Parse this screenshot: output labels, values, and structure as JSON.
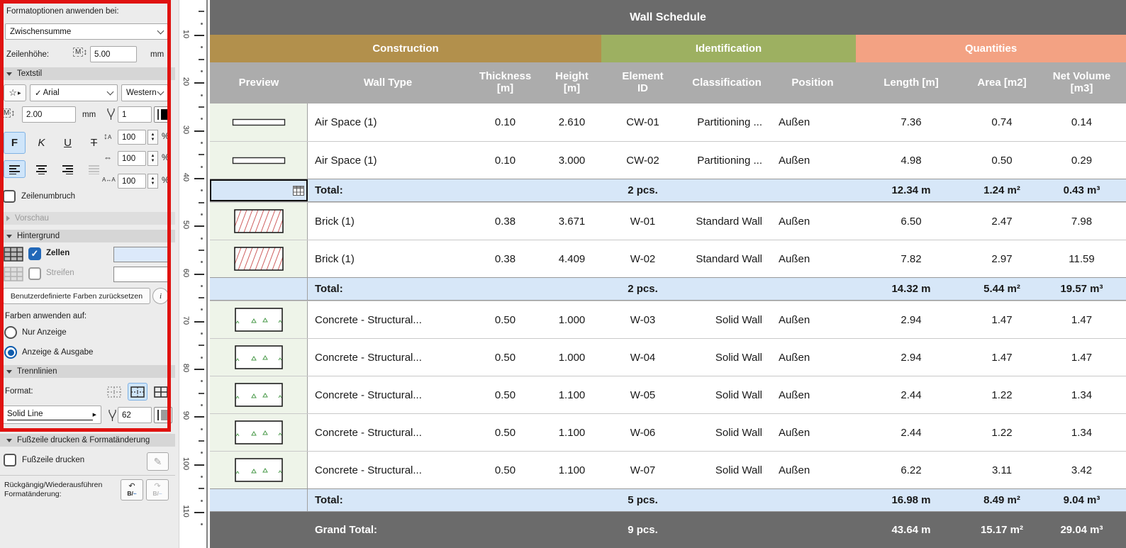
{
  "colors": {
    "selection_frame": "#e01210",
    "title_bar": "#6b6b6b",
    "construction": "#b2904c",
    "identification": "#9db061",
    "quantities": "#f3a283",
    "column_header": "#acacac",
    "total_row": "#d7e7f8",
    "preview_cell": "#eef4e9",
    "cells_color": "#dce9fa",
    "stripes_color": "#ffffff",
    "pen_color": "#000000",
    "separator_pen_color": "#9b9b9b"
  },
  "panel": {
    "apply_format_label": "Formatoptionen anwenden bei:",
    "apply_format_value": "Zwischensumme",
    "row_height": {
      "label": "Zeilenhöhe:",
      "value": "5.00",
      "unit": "mm"
    },
    "text_style": {
      "section": "Textstil",
      "font_check": "✓",
      "font_name": "Arial",
      "script": "Western",
      "size_value": "2.00",
      "size_unit": "mm",
      "pen_value": "1",
      "bold": "F",
      "italic": "K",
      "underline": "U",
      "strike": "T",
      "line_spacing": "100",
      "width_factor": "100",
      "letter_spacing": "100",
      "percent": "%"
    },
    "wrap_label": "Zeilenumbruch",
    "preview_section": "Vorschau",
    "background_section": "Hintergrund",
    "cells_label": "Zellen",
    "stripes_label": "Streifen",
    "reset_button": "Benutzerdefinierte Farben zurücksetzen",
    "apply_colors_label": "Farben anwenden auf:",
    "radio_display_only": "Nur Anzeige",
    "radio_display_output": "Anzeige & Ausgabe",
    "separators_section": "Trennlinien",
    "format_label": "Format:",
    "line_type": "Solid Line",
    "separator_pen_value": "62",
    "footer_section": "Fußzeile drucken & Formatänderung",
    "footer_print_label": "Fußzeile drucken",
    "undo_label_line1": "Rückgängig/Wiederausführen",
    "undo_label_line2": "Formatänderung:"
  },
  "ruler": {
    "labels": [
      10,
      20,
      30,
      40,
      50,
      60,
      70,
      80,
      90,
      100,
      110
    ]
  },
  "schedule": {
    "title": "Wall Schedule",
    "groups": [
      {
        "label": "Construction"
      },
      {
        "label": "Identification"
      },
      {
        "label": "Quantities"
      }
    ],
    "columns": [
      "Preview",
      "Wall Type",
      "Thickness [m]",
      "Height [m]",
      "Element ID",
      "Classification",
      "Position",
      "Length [m]",
      "Area [m2]",
      "Net Volume [m3]"
    ],
    "rows": [
      {
        "type": "data",
        "preview": "airspace",
        "wall_type": "Air Space (1)",
        "thickness": "0.10",
        "height": "2.610",
        "element_id": "CW-01",
        "classification": "Partitioning ...",
        "position": "Außen",
        "length": "7.36",
        "area": "0.74",
        "volume": "0.14"
      },
      {
        "type": "data",
        "preview": "airspace",
        "wall_type": "Air Space (1)",
        "thickness": "0.10",
        "height": "3.000",
        "element_id": "CW-02",
        "classification": "Partitioning ...",
        "position": "Außen",
        "length": "4.98",
        "area": "0.50",
        "volume": "0.29"
      },
      {
        "type": "total",
        "selected": true,
        "label": "Total:",
        "pcs": "2 pcs.",
        "length": "12.34 m",
        "area": "1.24 m²",
        "volume": "0.43 m³"
      },
      {
        "type": "data",
        "preview": "brick",
        "wall_type": "Brick (1)",
        "thickness": "0.38",
        "height": "3.671",
        "element_id": "W-01",
        "classification": "Standard Wall",
        "position": "Außen",
        "length": "6.50",
        "area": "2.47",
        "volume": "7.98"
      },
      {
        "type": "data",
        "preview": "brick",
        "wall_type": "Brick (1)",
        "thickness": "0.38",
        "height": "4.409",
        "element_id": "W-02",
        "classification": "Standard Wall",
        "position": "Außen",
        "length": "7.82",
        "area": "2.97",
        "volume": "11.59"
      },
      {
        "type": "total",
        "label": "Total:",
        "pcs": "2 pcs.",
        "length": "14.32 m",
        "area": "5.44 m²",
        "volume": "19.57 m³"
      },
      {
        "type": "data",
        "preview": "concrete",
        "wall_type": "Concrete - Structural...",
        "thickness": "0.50",
        "height": "1.000",
        "element_id": "W-03",
        "classification": "Solid Wall",
        "position": "Außen",
        "length": "2.94",
        "area": "1.47",
        "volume": "1.47"
      },
      {
        "type": "data",
        "preview": "concrete",
        "wall_type": "Concrete - Structural...",
        "thickness": "0.50",
        "height": "1.000",
        "element_id": "W-04",
        "classification": "Solid Wall",
        "position": "Außen",
        "length": "2.94",
        "area": "1.47",
        "volume": "1.47"
      },
      {
        "type": "data",
        "preview": "concrete",
        "wall_type": "Concrete - Structural...",
        "thickness": "0.50",
        "height": "1.100",
        "element_id": "W-05",
        "classification": "Solid Wall",
        "position": "Außen",
        "length": "2.44",
        "area": "1.22",
        "volume": "1.34"
      },
      {
        "type": "data",
        "preview": "concrete",
        "wall_type": "Concrete - Structural...",
        "thickness": "0.50",
        "height": "1.100",
        "element_id": "W-06",
        "classification": "Solid Wall",
        "position": "Außen",
        "length": "2.44",
        "area": "1.22",
        "volume": "1.34"
      },
      {
        "type": "data",
        "preview": "concrete",
        "wall_type": "Concrete - Structural...",
        "thickness": "0.50",
        "height": "1.100",
        "element_id": "W-07",
        "classification": "Solid Wall",
        "position": "Außen",
        "length": "6.22",
        "area": "3.11",
        "volume": "3.42"
      },
      {
        "type": "total",
        "label": "Total:",
        "pcs": "5 pcs.",
        "length": "16.98 m",
        "area": "8.49 m²",
        "volume": "9.04 m³"
      },
      {
        "type": "grand",
        "label": "Grand Total:",
        "pcs": "9 pcs.",
        "length": "43.64 m",
        "area": "15.17 m²",
        "volume": "29.04 m³"
      }
    ]
  }
}
